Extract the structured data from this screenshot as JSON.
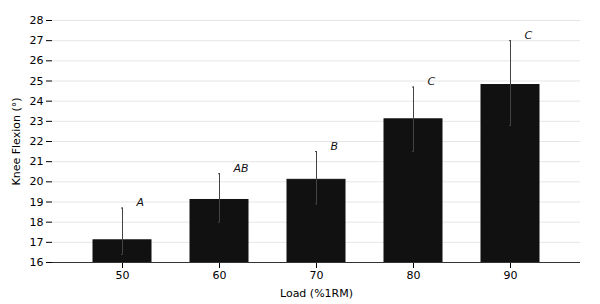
{
  "chart_data": {
    "type": "bar",
    "categories": [
      "50",
      "60",
      "70",
      "80",
      "90"
    ],
    "values": [
      17.1,
      19.1,
      20.1,
      23.1,
      24.8
    ],
    "error_bars": {
      "upper": [
        1.6,
        1.3,
        1.4,
        1.6,
        2.2
      ],
      "lower": [
        0.7,
        1.1,
        1.2,
        1.6,
        2.0
      ],
      "color": "#444444"
    },
    "annotations": [
      "A",
      "AB",
      "B",
      "C",
      "C"
    ],
    "color": "#111111",
    "xlabel": "Load (%1RM)",
    "ylabel": "Knee Flexion (°)",
    "ylim": [
      16,
      28
    ],
    "yticks": [
      16,
      17,
      18,
      19,
      20,
      21,
      22,
      23,
      24,
      25,
      26,
      27,
      28
    ],
    "grid": true
  }
}
